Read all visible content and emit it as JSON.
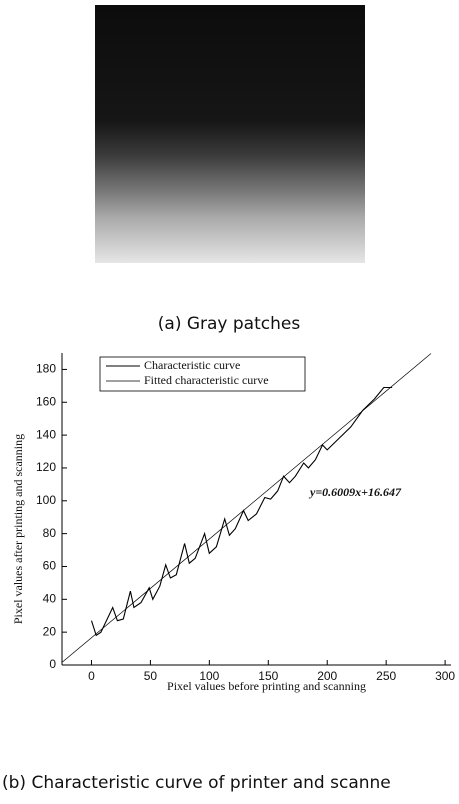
{
  "caption_a": "(a) Gray patches",
  "chart_data": {
    "type": "line",
    "xlabel": "Pixel values before printing and scanning",
    "ylabel": "Pixel values after printing and scanning",
    "annotation": "y=0.6009x+16.647",
    "series": [
      {
        "name": "Characteristic curve",
        "color": "#000000",
        "x": [
          0,
          4,
          8,
          18,
          22,
          27,
          33,
          36,
          42,
          49,
          52,
          58,
          63,
          67,
          72,
          79,
          83,
          88,
          96,
          100,
          106,
          113,
          117,
          122,
          129,
          133,
          140,
          147,
          152,
          158,
          163,
          168,
          173,
          180,
          184,
          190,
          196,
          200,
          210,
          220,
          230,
          240,
          248,
          255
        ],
        "values": [
          27,
          18,
          20,
          35,
          27,
          28,
          45,
          35,
          38,
          47,
          40,
          48,
          61,
          53,
          55,
          74,
          62,
          65,
          80,
          68,
          72,
          89,
          79,
          83,
          94,
          88,
          92,
          102,
          101,
          106,
          115,
          111,
          115,
          123,
          120,
          125,
          134,
          131,
          138,
          145,
          155,
          162,
          169,
          169
        ]
      },
      {
        "name": "Fitted characteristic curve",
        "color": "#000000",
        "x": [
          -25,
          288
        ],
        "values": [
          1.6,
          189.7
        ]
      }
    ],
    "xlim": [
      -25,
      305
    ],
    "ylim": [
      0,
      190
    ],
    "xticks": [
      0,
      50,
      100,
      150,
      200,
      250,
      300
    ],
    "yticks": [
      0,
      20,
      40,
      60,
      80,
      100,
      120,
      140,
      160,
      180
    ],
    "legend": "upper left"
  },
  "caption_b": "(b) Characteristic curve of printer and scanne"
}
